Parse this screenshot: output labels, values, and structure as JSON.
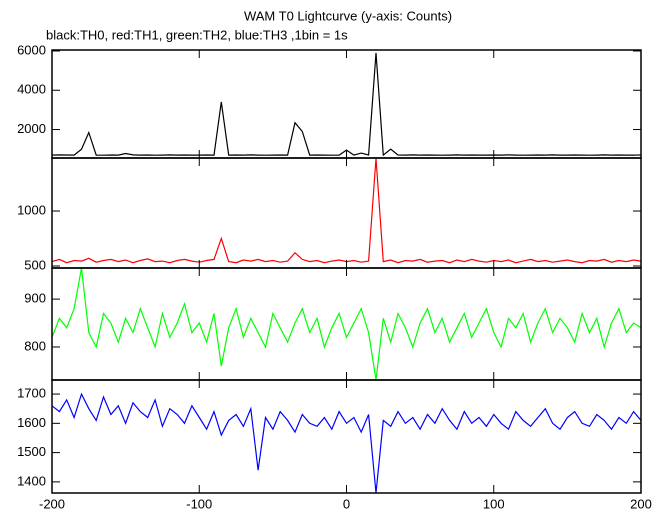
{
  "title": "WAM T0 Lightcurve (y-axis: Counts)",
  "subtitle": "black:TH0, red:TH1, green:TH2, blue:TH3 ,1bin = 1s",
  "chart_data": [
    {
      "type": "line",
      "color": "#000000",
      "xlim": [
        -200,
        200
      ],
      "ylim": [
        550,
        6050
      ],
      "yticks": [
        2000,
        4000,
        6000
      ],
      "x": [
        -200,
        -195,
        -190,
        -185,
        -180,
        -175,
        -170,
        -165,
        -160,
        -155,
        -150,
        -145,
        -140,
        -135,
        -130,
        -125,
        -120,
        -115,
        -110,
        -105,
        -100,
        -95,
        -90,
        -85,
        -80,
        -75,
        -70,
        -65,
        -60,
        -55,
        -50,
        -45,
        -40,
        -35,
        -30,
        -25,
        -20,
        -15,
        -10,
        -5,
        0,
        5,
        10,
        15,
        20,
        25,
        30,
        35,
        40,
        45,
        50,
        55,
        60,
        65,
        70,
        75,
        80,
        85,
        90,
        95,
        100,
        105,
        110,
        115,
        120,
        125,
        130,
        135,
        140,
        145,
        150,
        155,
        160,
        165,
        170,
        175,
        180,
        185,
        190,
        195,
        200
      ],
      "values": [
        700,
        710,
        705,
        700,
        1000,
        1850,
        700,
        695,
        705,
        700,
        780,
        710,
        700,
        705,
        695,
        700,
        710,
        700,
        705,
        700,
        700,
        705,
        700,
        3400,
        700,
        705,
        700,
        710,
        700,
        695,
        700,
        705,
        700,
        2350,
        1900,
        700,
        705,
        700,
        695,
        700,
        950,
        700,
        800,
        705,
        5900,
        700,
        1000,
        705,
        700,
        710,
        700,
        705,
        700,
        695,
        700,
        710,
        700,
        705,
        700,
        700,
        705,
        700,
        710,
        700,
        695,
        700,
        705,
        700,
        710,
        700,
        700,
        705,
        700,
        695,
        700,
        710,
        700,
        705,
        700,
        700,
        705
      ]
    },
    {
      "type": "line",
      "color": "#ff0000",
      "xlim": [
        -200,
        200
      ],
      "ylim": [
        482,
        1482
      ],
      "yticks": [
        500,
        1000
      ],
      "x": [
        -200,
        -195,
        -190,
        -185,
        -180,
        -175,
        -170,
        -165,
        -160,
        -155,
        -150,
        -145,
        -140,
        -135,
        -130,
        -125,
        -120,
        -115,
        -110,
        -105,
        -100,
        -95,
        -90,
        -85,
        -80,
        -75,
        -70,
        -65,
        -60,
        -55,
        -50,
        -45,
        -40,
        -35,
        -30,
        -25,
        -20,
        -15,
        -10,
        -5,
        0,
        5,
        10,
        15,
        20,
        25,
        30,
        35,
        40,
        45,
        50,
        55,
        60,
        65,
        70,
        75,
        80,
        85,
        90,
        95,
        100,
        105,
        110,
        115,
        120,
        125,
        130,
        135,
        140,
        145,
        150,
        155,
        160,
        165,
        170,
        175,
        180,
        185,
        190,
        195,
        200
      ],
      "values": [
        540,
        560,
        530,
        550,
        545,
        570,
        535,
        550,
        560,
        540,
        555,
        530,
        550,
        565,
        540,
        545,
        530,
        550,
        560,
        545,
        535,
        550,
        560,
        750,
        540,
        530,
        555,
        545,
        560,
        540,
        550,
        535,
        545,
        620,
        560,
        540,
        550,
        530,
        545,
        555,
        540,
        550,
        535,
        545,
        1480,
        540,
        555,
        530,
        550,
        545,
        560,
        535,
        545,
        550,
        530,
        555,
        540,
        560,
        545,
        535,
        550,
        540,
        555,
        530,
        545,
        560,
        540,
        550,
        535,
        545,
        555,
        540,
        530,
        550,
        545,
        560,
        535,
        550,
        540,
        555,
        545
      ]
    },
    {
      "type": "line",
      "color": "#00ff00",
      "xlim": [
        -200,
        200
      ],
      "ylim": [
        731,
        965
      ],
      "yticks": [
        800,
        900
      ],
      "x": [
        -200,
        -195,
        -190,
        -185,
        -180,
        -175,
        -170,
        -165,
        -160,
        -155,
        -150,
        -145,
        -140,
        -135,
        -130,
        -125,
        -120,
        -115,
        -110,
        -105,
        -100,
        -95,
        -90,
        -85,
        -80,
        -75,
        -70,
        -65,
        -60,
        -55,
        -50,
        -45,
        -40,
        -35,
        -30,
        -25,
        -20,
        -15,
        -10,
        -5,
        0,
        5,
        10,
        15,
        20,
        25,
        30,
        35,
        40,
        45,
        50,
        55,
        60,
        65,
        70,
        75,
        80,
        85,
        90,
        95,
        100,
        105,
        110,
        115,
        120,
        125,
        130,
        135,
        140,
        145,
        150,
        155,
        160,
        165,
        170,
        175,
        180,
        185,
        190,
        195,
        200
      ],
      "values": [
        820,
        860,
        840,
        880,
        965,
        830,
        800,
        870,
        850,
        810,
        860,
        830,
        880,
        840,
        800,
        870,
        820,
        850,
        890,
        830,
        850,
        810,
        870,
        760,
        840,
        880,
        820,
        860,
        830,
        800,
        870,
        840,
        810,
        850,
        880,
        830,
        860,
        800,
        840,
        870,
        820,
        850,
        880,
        830,
        731,
        860,
        810,
        870,
        840,
        800,
        850,
        880,
        830,
        860,
        810,
        840,
        870,
        820,
        850,
        880,
        830,
        800,
        860,
        840,
        870,
        810,
        850,
        880,
        830,
        860,
        840,
        810,
        870,
        830,
        860,
        800,
        850,
        880,
        830,
        850,
        840
      ]
    },
    {
      "type": "line",
      "color": "#0000ff",
      "xlim": [
        -200,
        200
      ],
      "ylim": [
        1362,
        1748
      ],
      "yticks": [
        1400,
        1500,
        1600,
        1700
      ],
      "xticks": [
        -200,
        -100,
        0,
        100,
        200
      ],
      "x": [
        -200,
        -195,
        -190,
        -185,
        -180,
        -175,
        -170,
        -165,
        -160,
        -155,
        -150,
        -145,
        -140,
        -135,
        -130,
        -125,
        -120,
        -115,
        -110,
        -105,
        -100,
        -95,
        -90,
        -85,
        -80,
        -75,
        -70,
        -65,
        -60,
        -55,
        -50,
        -45,
        -40,
        -35,
        -30,
        -25,
        -20,
        -15,
        -10,
        -5,
        0,
        5,
        10,
        15,
        20,
        25,
        30,
        35,
        40,
        45,
        50,
        55,
        60,
        65,
        70,
        75,
        80,
        85,
        90,
        95,
        100,
        105,
        110,
        115,
        120,
        125,
        130,
        135,
        140,
        145,
        150,
        155,
        160,
        165,
        170,
        175,
        180,
        185,
        190,
        195,
        200
      ],
      "values": [
        1660,
        1640,
        1680,
        1620,
        1700,
        1650,
        1610,
        1690,
        1630,
        1660,
        1600,
        1670,
        1640,
        1620,
        1680,
        1590,
        1650,
        1630,
        1600,
        1660,
        1620,
        1580,
        1640,
        1560,
        1610,
        1630,
        1590,
        1650,
        1440,
        1620,
        1580,
        1640,
        1610,
        1570,
        1630,
        1600,
        1590,
        1620,
        1580,
        1640,
        1600,
        1620,
        1570,
        1630,
        1362,
        1610,
        1590,
        1640,
        1600,
        1620,
        1580,
        1630,
        1600,
        1650,
        1610,
        1580,
        1640,
        1600,
        1620,
        1590,
        1630,
        1600,
        1580,
        1640,
        1610,
        1590,
        1620,
        1650,
        1600,
        1580,
        1620,
        1640,
        1600,
        1590,
        1630,
        1610,
        1580,
        1620,
        1600,
        1640,
        1610
      ]
    }
  ]
}
